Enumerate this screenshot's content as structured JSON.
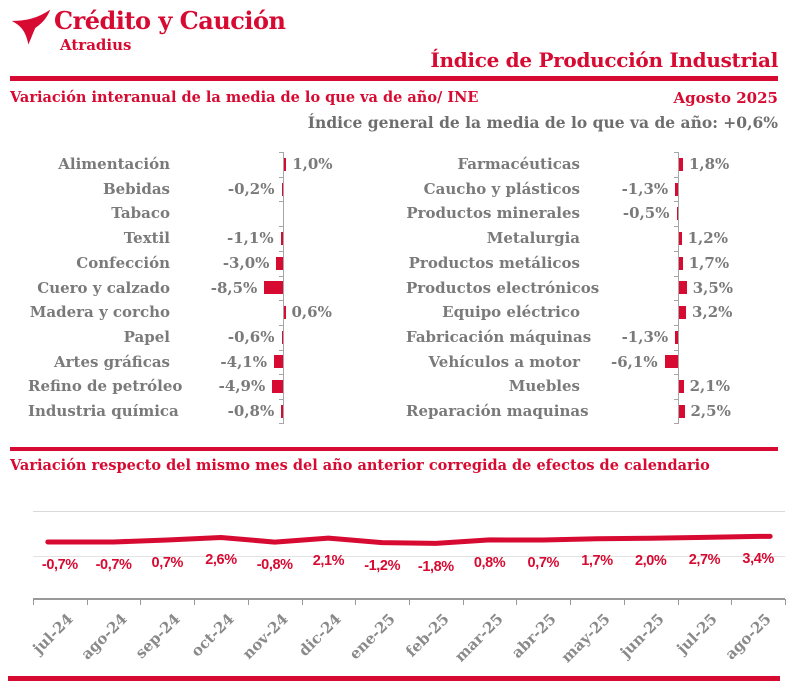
{
  "brand": {
    "name": "Crédito y Caución",
    "subname": "Atradius"
  },
  "header": {
    "title": "Índice de Producción Industrial"
  },
  "section1": {
    "subtitle": "Variación interanual de la media de lo que va de año/ INE",
    "period": "Agosto 2025",
    "general_index": "Índice general de la media de lo que va de año:  +0,6%"
  },
  "section2": {
    "subtitle": "Variación respecto del mismo mes del año anterior corregida de efectos de calendario"
  },
  "colors": {
    "brand_red": "#d70a32",
    "gray_text": "#7a7a7a",
    "axis_gray": "#a6a6a6",
    "grid_gray": "#d9d9d9"
  },
  "chart_data": [
    {
      "type": "bar",
      "orientation": "horizontal",
      "group": "left",
      "title": "Variación interanual de la media de lo que va de año/ INE",
      "categories": [
        "Alimentación",
        "Bebidas",
        "Tabaco",
        "Textil",
        "Confección",
        "Cuero y calzado",
        "Madera y corcho",
        "Papel",
        "Artes gráficas",
        "Refino de petróleo",
        "Industria química"
      ],
      "values": [
        1.0,
        -0.2,
        null,
        -1.1,
        -3.0,
        -8.5,
        0.6,
        -0.6,
        -4.1,
        -4.9,
        -0.8
      ],
      "labels": [
        "1,0%",
        "-0,2%",
        "",
        "-1,1%",
        "-3,0%",
        "-8,5%",
        "0,6%",
        "-0,6%",
        "-4,1%",
        "-4,9%",
        "-0,8%"
      ],
      "xlim": [
        -10,
        4
      ],
      "grid": false
    },
    {
      "type": "bar",
      "orientation": "horizontal",
      "group": "right",
      "title": "Variación interanual de la media de lo que va de año/ INE",
      "categories": [
        "Farmacéuticas",
        "Caucho y plásticos",
        "Productos minerales",
        "Metalurgia",
        "Productos metálicos",
        "Productos electrónicos",
        "Equipo eléctrico",
        "Fabricación máquinas",
        "Vehículos a motor",
        "Muebles",
        "Reparación maquinas"
      ],
      "values": [
        1.8,
        -1.3,
        -0.5,
        1.2,
        1.7,
        3.5,
        3.2,
        -1.3,
        -6.1,
        2.1,
        2.5
      ],
      "labels": [
        "1,8%",
        "-1,3%",
        "-0,5%",
        "1,2%",
        "1,7%",
        "3,5%",
        "3,2%",
        "-1,3%",
        "-6,1%",
        "2,1%",
        "2,5%"
      ],
      "xlim": [
        -10,
        4
      ],
      "grid": false
    },
    {
      "type": "line",
      "title": "Variación respecto del mismo mes del año anterior corregida de efectos de calendario",
      "x": [
        "jul-24",
        "ago-24",
        "sep-24",
        "oct-24",
        "nov-24",
        "dic-24",
        "ene-25",
        "feb-25",
        "mar-25",
        "abr-25",
        "may-25",
        "jun-25",
        "jul-25",
        "ago-25"
      ],
      "values": [
        -0.7,
        -0.7,
        0.7,
        2.6,
        -0.8,
        2.1,
        -1.2,
        -1.8,
        0.8,
        0.7,
        1.7,
        2.0,
        2.7,
        3.4
      ],
      "labels": [
        "-0,7%",
        "-0,7%",
        "0,7%",
        "2,6%",
        "-0,8%",
        "2,1%",
        "-1,2%",
        "-1,8%",
        "0,8%",
        "0,7%",
        "1,7%",
        "2,0%",
        "2,7%",
        "3,4%"
      ],
      "grid": true,
      "legend": "none"
    }
  ]
}
